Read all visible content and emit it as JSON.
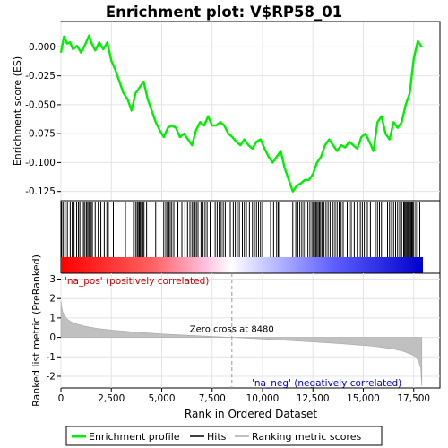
{
  "chart_data": {
    "type": "line",
    "title": "Enrichment plot: V$RP58_01",
    "es_panel": {
      "ylabel": "Enrichment score (ES)",
      "ylim": [
        -0.133,
        0.022
      ],
      "yticks": [
        0.0,
        -0.025,
        -0.05,
        -0.075,
        -0.1,
        -0.125
      ],
      "ytick_labels": [
        "0.000",
        "-0.025",
        "-0.050",
        "-0.075",
        "-0.100",
        "-0.125"
      ],
      "series": [
        {
          "name": "Enrichment profile",
          "color": "#00ee00",
          "x": [
            0,
            150,
            300,
            450,
            600,
            800,
            1000,
            1200,
            1400,
            1500,
            1700,
            1900,
            2100,
            2300,
            2500,
            2700,
            2900,
            3100,
            3300,
            3500,
            3700,
            3900,
            4100,
            4300,
            4500,
            4700,
            4900,
            5100,
            5300,
            5500,
            5700,
            5900,
            6100,
            6300,
            6500,
            6700,
            6900,
            7100,
            7300,
            7500,
            7700,
            7900,
            8100,
            8300,
            8500,
            8700,
            8900,
            9100,
            9300,
            9500,
            9700,
            9900,
            10100,
            10300,
            10500,
            10700,
            10900,
            11100,
            11300,
            11500,
            11700,
            11900,
            12100,
            12300,
            12500,
            12700,
            12900,
            13100,
            13300,
            13500,
            13700,
            13900,
            14100,
            14300,
            14500,
            14700,
            14900,
            15100,
            15300,
            15500,
            15700,
            15900,
            16100,
            16300,
            16500,
            16700,
            16900,
            17100,
            17300,
            17500,
            17700,
            17900
          ],
          "y": [
            -0.005,
            0.009,
            0.003,
            0.004,
            -0.002,
            0.001,
            -0.005,
            0.002,
            0.01,
            0.004,
            -0.003,
            0.004,
            -0.002,
            0.004,
            -0.012,
            -0.02,
            -0.03,
            -0.04,
            -0.045,
            -0.055,
            -0.04,
            -0.035,
            -0.03,
            -0.045,
            -0.055,
            -0.065,
            -0.072,
            -0.078,
            -0.07,
            -0.068,
            -0.07,
            -0.078,
            -0.075,
            -0.08,
            -0.085,
            -0.072,
            -0.065,
            -0.068,
            -0.06,
            -0.068,
            -0.068,
            -0.065,
            -0.068,
            -0.075,
            -0.078,
            -0.082,
            -0.085,
            -0.08,
            -0.085,
            -0.088,
            -0.082,
            -0.08,
            -0.088,
            -0.095,
            -0.1,
            -0.095,
            -0.09,
            -0.105,
            -0.115,
            -0.125,
            -0.12,
            -0.118,
            -0.115,
            -0.115,
            -0.11,
            -0.1,
            -0.095,
            -0.085,
            -0.08,
            -0.085,
            -0.09,
            -0.085,
            -0.087,
            -0.082,
            -0.085,
            -0.088,
            -0.078,
            -0.075,
            -0.082,
            -0.09,
            -0.065,
            -0.06,
            -0.075,
            -0.08,
            -0.065,
            -0.07,
            -0.065,
            -0.05,
            -0.04,
            -0.01,
            0.005,
            0.0
          ]
        }
      ]
    },
    "hits": {
      "name": "Hits",
      "positions": [
        40,
        120,
        210,
        320,
        460,
        560,
        650,
        780,
        870,
        940,
        1050,
        1120,
        1190,
        1270,
        1330,
        1390,
        1440,
        1500,
        1560,
        1700,
        1850,
        1980,
        2150,
        2280,
        2350,
        2600,
        3200,
        3600,
        3700,
        3780,
        3830,
        3890,
        3940,
        4000,
        4060,
        4120,
        4250,
        4700,
        5100,
        5200,
        5280,
        5350,
        5420,
        5500,
        5600,
        5800,
        6000,
        6150,
        6280,
        6400,
        6500,
        6580,
        6650,
        6720,
        6800,
        6950,
        7050,
        7150,
        7250,
        7400,
        7650,
        7750,
        7850,
        7950,
        8050,
        8150,
        8400,
        8550,
        8650,
        8750,
        8850,
        9000,
        9100,
        9200,
        9350,
        9500,
        9600,
        9700,
        9800,
        9900,
        10000,
        10400,
        10550,
        10700,
        10780,
        10850,
        11500,
        11650,
        11750,
        11850,
        11950,
        12050,
        12150,
        12250,
        12350,
        12450,
        12520,
        12580,
        12640,
        12700,
        12760,
        12820,
        12880,
        12950,
        13050,
        13150,
        13250,
        13350,
        13500,
        13600,
        13700,
        13800,
        13900,
        14000,
        14200,
        14300,
        14400,
        14550,
        14700,
        14850,
        14950,
        15050,
        15200,
        15350,
        15600,
        15700,
        15800,
        15900,
        16200,
        16300,
        16400,
        16500,
        16600,
        16700,
        16800,
        16900,
        17000,
        17050,
        17100,
        17150,
        17200,
        17250,
        17300,
        17350,
        17400,
        17450,
        17500,
        17600,
        17700,
        17800
      ]
    },
    "rank_metric_panel": {
      "ylabel": "Ranked list metric (PreRanked)",
      "ylim": [
        -2.6,
        3.3
      ],
      "yticks": [
        3,
        2,
        1,
        0,
        -1,
        -2
      ],
      "ytick_labels": [
        "3",
        "2",
        "1",
        "0",
        "-1",
        "-2"
      ],
      "series": [
        {
          "name": "Ranking metric scores",
          "color": "#c0c0c0",
          "x": [
            0,
            30,
            80,
            150,
            300,
            500,
            800,
            1200,
            1800,
            2500,
            3500,
            5000,
            6500,
            8480,
            10000,
            12000,
            14000,
            15500,
            16500,
            17000,
            17400,
            17600,
            17750,
            17850,
            17900
          ],
          "y": [
            1.9,
            1.6,
            1.35,
            1.15,
            0.95,
            0.8,
            0.68,
            0.57,
            0.46,
            0.38,
            0.29,
            0.18,
            0.1,
            0.0,
            -0.08,
            -0.2,
            -0.33,
            -0.45,
            -0.6,
            -0.72,
            -0.88,
            -1.0,
            -1.25,
            -1.6,
            -2.5
          ]
        }
      ],
      "annotations": [
        {
          "text": "Zero cross at 8480",
          "x": 8480
        },
        {
          "text": "'na_pos' (positively correlated)",
          "color": "#cc0000"
        },
        {
          "text": "'na_neg' (negatively correlated)",
          "color": "#0000cc"
        }
      ]
    },
    "xaxis": {
      "label": "Rank in Ordered Dataset",
      "xlim": [
        0,
        18800
      ],
      "ticks": [
        0,
        2500,
        5000,
        7500,
        10000,
        12500,
        15000,
        17500
      ],
      "tick_labels": [
        "0",
        "2,500",
        "5,000",
        "7,500",
        "10,000",
        "12,500",
        "15,000",
        "17,500"
      ]
    },
    "n_genes": 17900,
    "legend": {
      "placement": "bottom",
      "entries": [
        {
          "label": "Enrichment profile",
          "color": "#00ee00"
        },
        {
          "label": "Hits",
          "color": "#000000"
        },
        {
          "label": "Ranking metric scores",
          "color": "#c0c0c0"
        }
      ]
    }
  }
}
